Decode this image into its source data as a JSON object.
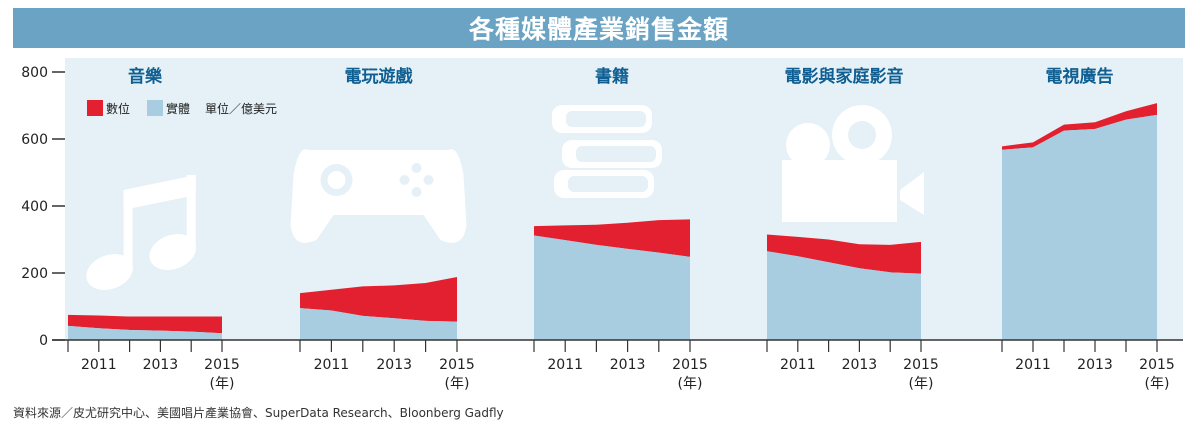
{
  "title": "各種媒體產業銷售金額",
  "source": "資料來源／皮尤研究中心、美國唱片產業協會、SuperData Research、Bloonberg Gadfly",
  "legend": {
    "digital": "數位",
    "physical": "實體",
    "unit": "單位／億美元"
  },
  "year_unit": "(年)",
  "colors": {
    "title_bar": "#6aa3c3",
    "panel_bg": "#e5f1f6",
    "physical": "#a9cde0",
    "digital": "#e3202f",
    "icon": "#ffffff"
  },
  "chart_data": {
    "type": "area",
    "title": "各種媒體產業銷售金額",
    "ylim": [
      0,
      800
    ],
    "yticks": [
      0,
      200,
      400,
      600,
      800
    ],
    "stacking": "stacked",
    "legend_placement": "top-left",
    "x": [
      2010,
      2011,
      2012,
      2013,
      2014,
      2015
    ],
    "xtick_labels": [
      "2011",
      "2013",
      "2015"
    ],
    "panels": [
      {
        "name": "音樂",
        "icon": "music-note",
        "series": [
          {
            "name": "實體",
            "values": [
              42,
              35,
              30,
              28,
              25,
              20
            ]
          },
          {
            "name": "數位",
            "values": [
              33,
              38,
              40,
              42,
              45,
              50
            ]
          }
        ]
      },
      {
        "name": "電玩遊戲",
        "icon": "game-controller",
        "series": [
          {
            "name": "實體",
            "values": [
              95,
              88,
              72,
              65,
              57,
              55
            ]
          },
          {
            "name": "數位",
            "values": [
              45,
              62,
              88,
              98,
              113,
              133
            ]
          }
        ]
      },
      {
        "name": "書籍",
        "icon": "books",
        "series": [
          {
            "name": "實體",
            "values": [
              312,
              298,
              284,
              272,
              261,
              248
            ]
          },
          {
            "name": "數位",
            "values": [
              28,
              44,
              60,
              78,
              97,
              112
            ]
          }
        ]
      },
      {
        "name": "電影與家庭影音",
        "icon": "movie-camera",
        "series": [
          {
            "name": "實體",
            "values": [
              265,
              250,
              232,
              214,
              202,
              198
            ]
          },
          {
            "name": "數位",
            "values": [
              50,
              58,
              68,
              72,
              82,
              95
            ]
          }
        ]
      },
      {
        "name": "電視廣告",
        "icon": "television",
        "series": [
          {
            "name": "實體",
            "values": [
              568,
              575,
              625,
              630,
              658,
              672
            ]
          },
          {
            "name": "數位",
            "values": [
              10,
              15,
              18,
              20,
              25,
              35
            ]
          }
        ]
      }
    ]
  }
}
